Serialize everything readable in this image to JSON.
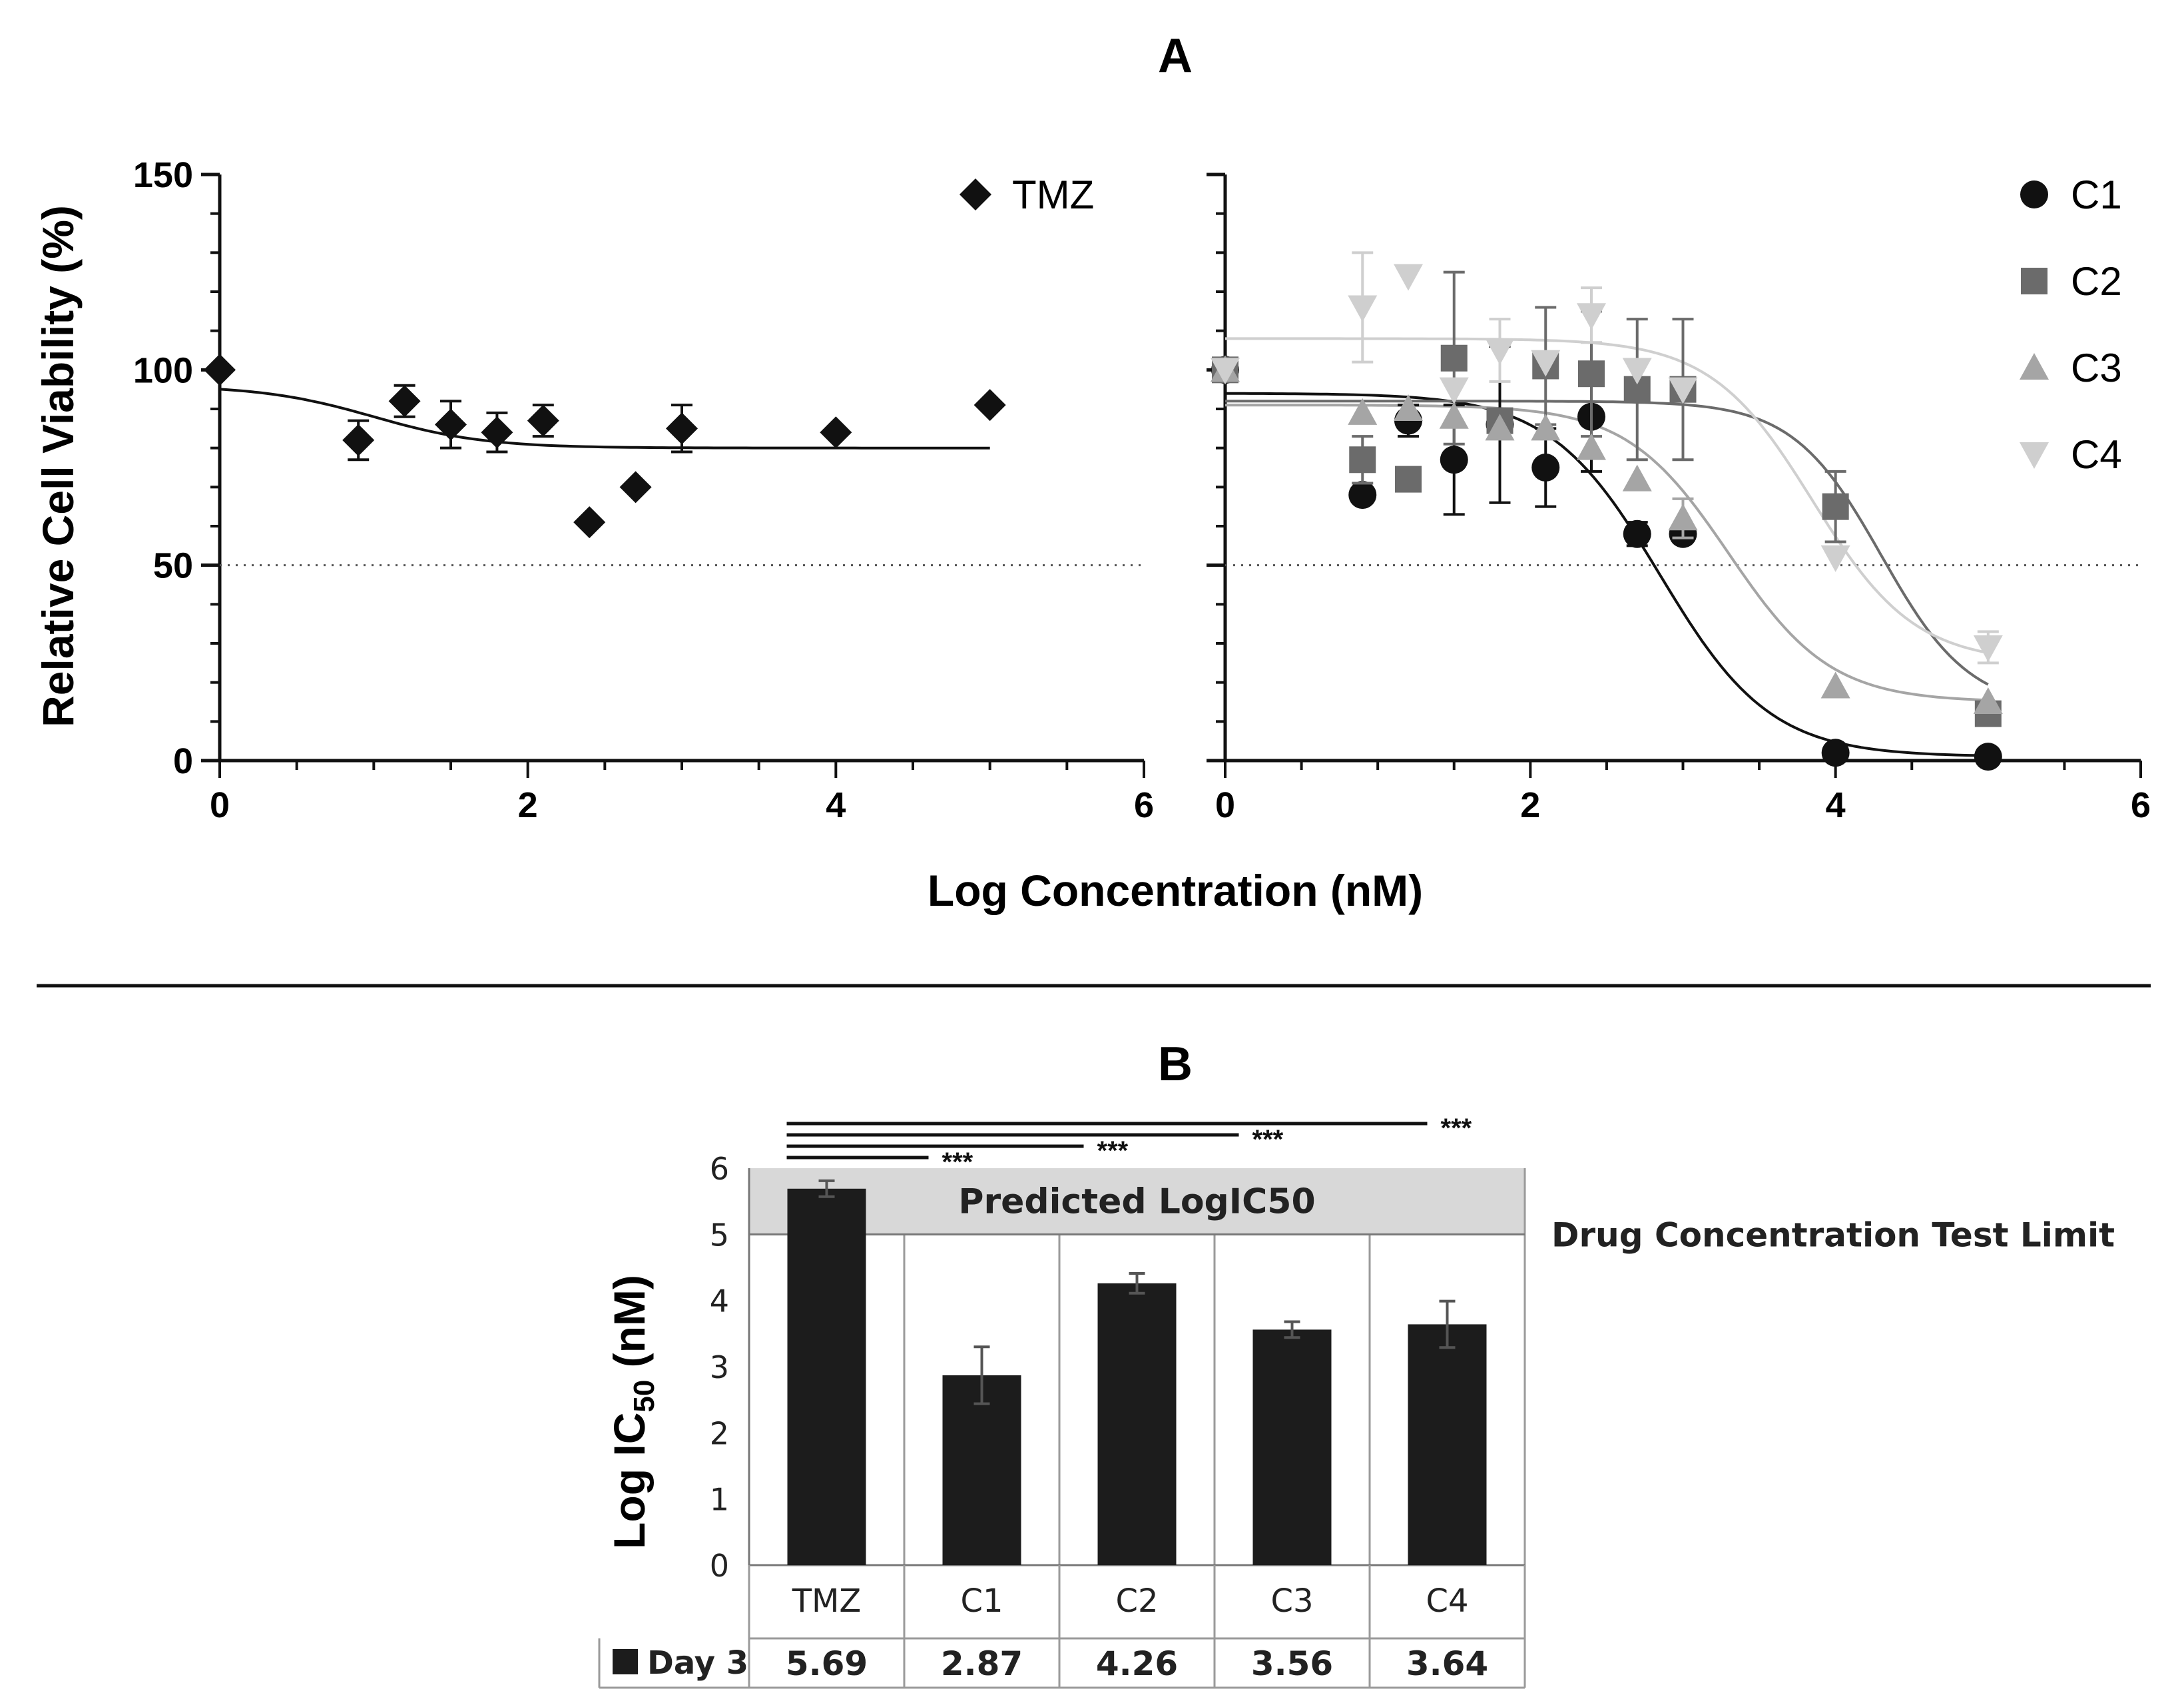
{
  "panel_a": {
    "title": "A",
    "ylabel": "Relative Cell Viability (%)",
    "xlabel": "Log Concentration (nM)"
  },
  "panel_b": {
    "title": "B",
    "ylabel_main": "Log IC",
    "ylabel_sub": "50",
    "ylabel_unit": " (nM)",
    "band_label": "Predicted LogIC50",
    "limit_label": "Drug Concentration Test Limit",
    "significance": "***",
    "table_row_label": "Day 3"
  },
  "colors": {
    "black": "#111111",
    "c2": "#6b6b6b",
    "c3": "#a5a5a5",
    "c4": "#cfcfcf",
    "band": "#d8d8d8"
  },
  "chart_data": [
    {
      "type": "scatter",
      "title": "",
      "xlabel": "Log Concentration (nM)",
      "ylabel": "Relative Cell Viability (%)",
      "xlim": [
        0,
        6
      ],
      "ylim": [
        0,
        150
      ],
      "xticks": [
        0,
        2,
        4,
        6
      ],
      "yticks": [
        0,
        50,
        100,
        150
      ],
      "reference_line_y": 50,
      "legend_position": "top-right",
      "series": [
        {
          "name": "TMZ",
          "marker": "diamond",
          "color": "#111111",
          "x": [
            0,
            0.9,
            1.2,
            1.5,
            1.8,
            2.1,
            2.4,
            2.7,
            3.0,
            4.0,
            5.0
          ],
          "y": [
            100,
            82,
            92,
            86,
            84,
            87,
            61,
            70,
            85,
            84,
            91
          ],
          "err": [
            0,
            5,
            4,
            6,
            5,
            4,
            0,
            0,
            6,
            0,
            0
          ],
          "fit": {
            "top": 96,
            "bottom": 80,
            "logIC50": 1.0,
            "hill": -1.2,
            "xmax": 5.0
          }
        }
      ]
    },
    {
      "type": "scatter",
      "title": "",
      "xlabel": "Log Concentration (nM)",
      "ylabel": "",
      "xlim": [
        0,
        6
      ],
      "ylim": [
        0,
        150
      ],
      "xticks": [
        0,
        2,
        4,
        6
      ],
      "reference_line_y": 50,
      "legend_position": "top-right",
      "series": [
        {
          "name": "C1",
          "marker": "circle",
          "color": "#111111",
          "x": [
            0,
            0.9,
            1.2,
            1.5,
            1.8,
            2.1,
            2.4,
            2.7,
            3.0,
            4.0,
            5.0
          ],
          "y": [
            100,
            68,
            87,
            77,
            86,
            75,
            88,
            58,
            58,
            2,
            1
          ],
          "err": [
            0,
            0,
            4,
            14,
            20,
            10,
            14,
            3,
            0,
            0,
            0
          ],
          "fit": {
            "top": 94,
            "bottom": 1,
            "logIC50": 2.85,
            "hill": -1.2,
            "xmax": 5.0
          }
        },
        {
          "name": "C2",
          "marker": "square",
          "color": "#6b6b6b",
          "x": [
            0,
            0.9,
            1.2,
            1.5,
            1.8,
            2.1,
            2.4,
            2.7,
            3.0,
            4.0,
            5.0
          ],
          "y": [
            100,
            77,
            72,
            103,
            87,
            101,
            99,
            95,
            95,
            65,
            12
          ],
          "err": [
            0,
            6,
            0,
            22,
            0,
            15,
            16,
            18,
            18,
            9,
            0
          ],
          "fit": {
            "top": 92,
            "bottom": 13,
            "logIC50": 4.3,
            "hill": -1.5,
            "xmax": 5.0
          }
        },
        {
          "name": "C3",
          "marker": "triangle",
          "color": "#a5a5a5",
          "x": [
            0,
            0.9,
            1.2,
            1.5,
            1.8,
            2.1,
            2.4,
            2.7,
            3.0,
            4.0,
            5.0
          ],
          "y": [
            100,
            89,
            90,
            88,
            85,
            85,
            80,
            72,
            62,
            19,
            15
          ],
          "err": [
            0,
            0,
            0,
            0,
            0,
            0,
            0,
            0,
            5,
            0,
            0
          ],
          "fit": {
            "top": 91,
            "bottom": 15,
            "logIC50": 3.3,
            "hill": -1.3,
            "xmax": 5.0
          }
        },
        {
          "name": "C4",
          "marker": "triangle-down",
          "color": "#cfcfcf",
          "x": [
            0,
            0.9,
            1.2,
            1.5,
            1.8,
            2.1,
            2.4,
            2.7,
            3.0,
            4.0,
            5.0
          ],
          "y": [
            100,
            116,
            124,
            95,
            105,
            102,
            114,
            100,
            95,
            52,
            29
          ],
          "err": [
            0,
            14,
            0,
            0,
            8,
            0,
            7,
            0,
            0,
            0,
            4
          ],
          "fit": {
            "top": 108,
            "bottom": 25,
            "logIC50": 3.85,
            "hill": -1.3,
            "xmax": 5.0
          }
        }
      ]
    },
    {
      "type": "bar",
      "title": "",
      "xlabel": "",
      "ylabel": "Log IC50 (nM)",
      "ylim": [
        0,
        6
      ],
      "yticks": [
        0,
        1,
        2,
        3,
        4,
        5,
        6
      ],
      "categories": [
        "TMZ",
        "C1",
        "C2",
        "C3",
        "C4"
      ],
      "series": [
        {
          "name": "Day 3",
          "values": [
            5.69,
            2.87,
            4.26,
            3.56,
            3.64
          ],
          "errors": [
            0.12,
            0.43,
            0.15,
            0.12,
            0.35
          ]
        }
      ],
      "table_values": [
        "5.69",
        "2.87",
        "4.26",
        "3.56",
        "3.64"
      ],
      "predicted_band": [
        5,
        6
      ],
      "test_limit": 5,
      "significance": [
        {
          "from": "TMZ",
          "to": "C1",
          "label": "***"
        },
        {
          "from": "TMZ",
          "to": "C2",
          "label": "***"
        },
        {
          "from": "TMZ",
          "to": "C3",
          "label": "***"
        },
        {
          "from": "TMZ",
          "to": "C4",
          "label": "***"
        }
      ]
    }
  ]
}
